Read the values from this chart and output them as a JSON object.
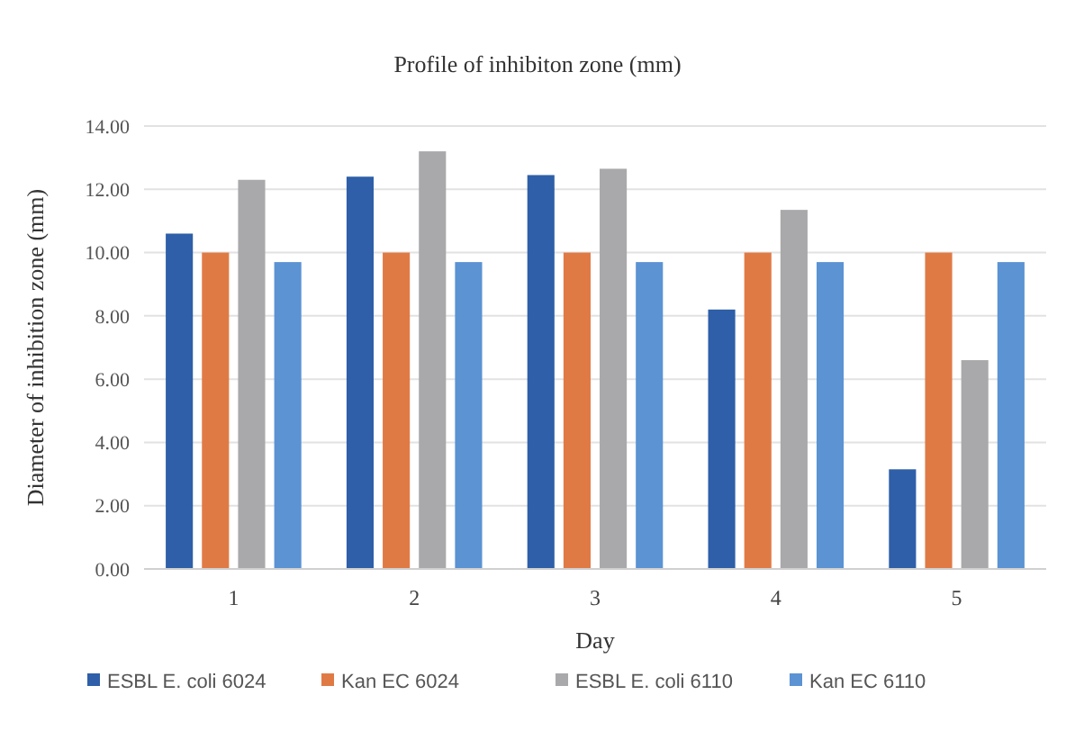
{
  "chart_data": {
    "type": "bar",
    "title": "Profile of inhibiton zone (mm)",
    "xlabel": "Day",
    "ylabel": "Diameter of inhibition zone (mm)",
    "categories": [
      "1",
      "2",
      "3",
      "4",
      "5"
    ],
    "series": [
      {
        "name": "ESBL E. coli 6024",
        "color": "#2e5fa8",
        "values": [
          10.6,
          12.4,
          12.45,
          8.2,
          3.15
        ]
      },
      {
        "name": "Kan EC 6024",
        "color": "#e07a45",
        "values": [
          10.0,
          10.0,
          10.0,
          10.0,
          10.0
        ]
      },
      {
        "name": "ESBL E. coli 6110",
        "color": "#a9a9ab",
        "values": [
          12.3,
          13.2,
          12.65,
          11.35,
          6.6
        ]
      },
      {
        "name": "Kan EC 6110",
        "color": "#5b93d3",
        "values": [
          9.7,
          9.7,
          9.7,
          9.7,
          9.7
        ]
      }
    ],
    "ylim": [
      0,
      14
    ],
    "yticks": [
      {
        "value": 0,
        "label": "0.00"
      },
      {
        "value": 2,
        "label": "2.00"
      },
      {
        "value": 4,
        "label": "4.00"
      },
      {
        "value": 6,
        "label": "6.00"
      },
      {
        "value": 8,
        "label": "8.00"
      },
      {
        "value": 10,
        "label": "10.00"
      },
      {
        "value": 12,
        "label": "12.00"
      },
      {
        "value": 14,
        "label": "14.00"
      }
    ],
    "grid": "y",
    "legend": "bottom"
  }
}
